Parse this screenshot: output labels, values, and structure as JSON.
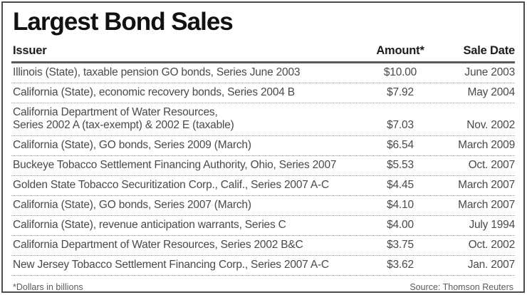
{
  "title": "Largest Bond Sales",
  "table": {
    "columns": [
      {
        "label": "Issuer",
        "align": "left"
      },
      {
        "label": "Amount*",
        "align": "center"
      },
      {
        "label": "Sale Date",
        "align": "right"
      }
    ],
    "rows": [
      {
        "issuer_lines": [
          "Illinois (State), taxable pension GO bonds, Series June 2003"
        ],
        "amount": "$10.00",
        "sale_date": "June 2003"
      },
      {
        "issuer_lines": [
          "California (State), economic recovery bonds, Series 2004 B"
        ],
        "amount": "$7.92",
        "sale_date": "May 2004"
      },
      {
        "issuer_lines": [
          "California Department of Water Resources,",
          "Series 2002 A (tax-exempt) & 2002 E (taxable)"
        ],
        "amount": "$7.03",
        "sale_date": "Nov. 2002"
      },
      {
        "issuer_lines": [
          "California (State), GO bonds, Series 2009 (March)"
        ],
        "amount": "$6.54",
        "sale_date": "March 2009"
      },
      {
        "issuer_lines": [
          "Buckeye Tobacco Settlement Financing Authority, Ohio, Series 2007"
        ],
        "amount": "$5.53",
        "sale_date": "Oct. 2007"
      },
      {
        "issuer_lines": [
          "Golden State Tobacco Securitization Corp., Calif., Series 2007 A-C"
        ],
        "amount": "$4.45",
        "sale_date": "March 2007"
      },
      {
        "issuer_lines": [
          "California (State), GO bonds, Series 2007 (March)"
        ],
        "amount": "$4.10",
        "sale_date": "March 2007"
      },
      {
        "issuer_lines": [
          "California (State), revenue anticipation warrants, Series C"
        ],
        "amount": "$4.00",
        "sale_date": "July 1994"
      },
      {
        "issuer_lines": [
          "California Department of Water Resources, Series 2002 B&C"
        ],
        "amount": "$3.75",
        "sale_date": "Oct. 2002"
      },
      {
        "issuer_lines": [
          "New Jersey Tobacco Settlement Financing Corp., Series 2007 A-C"
        ],
        "amount": "$3.62",
        "sale_date": "Jan. 2007"
      }
    ]
  },
  "footer": {
    "note": "*Dollars in billions",
    "source": "Source: Thomson Reuters"
  },
  "colors": {
    "title_text": "#111111",
    "header_text": "#1c1c1c",
    "row_text": "#4a4a4a",
    "footer_text": "#5d5d5d",
    "header_rule": "#595a5c",
    "dotted_rule": "#9b9b9b",
    "outer_border": "#4c4c4c",
    "background": "#ffffff"
  },
  "chart_data": {
    "type": "table",
    "title": "Largest Bond Sales",
    "columns": [
      "Issuer",
      "Amount*",
      "Sale Date"
    ],
    "rows": [
      [
        "Illinois (State), taxable pension GO bonds, Series June 2003",
        "$10.00",
        "June 2003"
      ],
      [
        "California (State), economic recovery bonds, Series 2004 B",
        "$7.92",
        "May 2004"
      ],
      [
        "California Department of Water Resources, Series 2002 A (tax-exempt) & 2002 E (taxable)",
        "$7.03",
        "Nov. 2002"
      ],
      [
        "California (State), GO bonds, Series 2009 (March)",
        "$6.54",
        "March 2009"
      ],
      [
        "Buckeye Tobacco Settlement Financing Authority, Ohio, Series 2007",
        "$5.53",
        "Oct. 2007"
      ],
      [
        "Golden State Tobacco Securitization Corp., Calif., Series 2007 A-C",
        "$4.45",
        "March 2007"
      ],
      [
        "California (State), GO bonds, Series 2007 (March)",
        "$4.10",
        "March 2007"
      ],
      [
        "California (State), revenue anticipation warrants, Series C",
        "$4.00",
        "July 1994"
      ],
      [
        "California Department of Water Resources, Series 2002 B&C",
        "$3.75",
        "Oct. 2002"
      ],
      [
        "New Jersey Tobacco Settlement Financing Corp., Series 2007 A-C",
        "$3.62",
        "Jan. 2007"
      ]
    ],
    "amounts_billions": [
      10.0,
      7.92,
      7.03,
      6.54,
      5.53,
      4.45,
      4.1,
      4.0,
      3.75,
      3.62
    ],
    "units_note": "*Dollars in billions",
    "source": "Source: Thomson Reuters"
  }
}
